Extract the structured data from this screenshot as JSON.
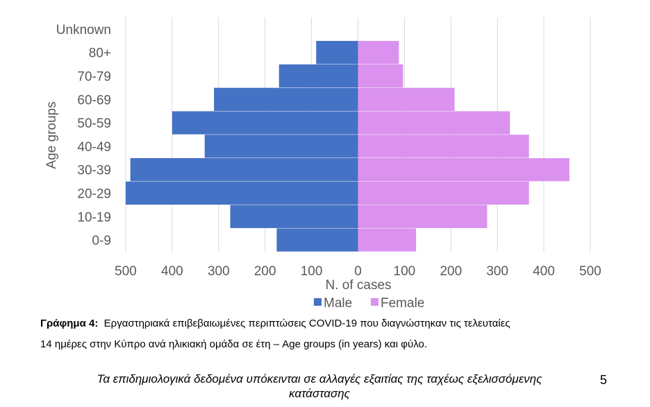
{
  "chart_data": {
    "type": "bar",
    "orientation": "horizontal",
    "subtype": "population-pyramid",
    "categories": [
      "0-9",
      "10-19",
      "20-29",
      "30-39",
      "40-49",
      "50-59",
      "60-69",
      "70-79",
      "80+",
      "Unknown"
    ],
    "series": [
      {
        "name": "Male",
        "color": "#4472C4",
        "values": [
          175,
          275,
          500,
          490,
          330,
          400,
          310,
          170,
          90,
          0
        ]
      },
      {
        "name": "Female",
        "color": "#DA92EE",
        "values": [
          125,
          278,
          368,
          455,
          368,
          327,
          208,
          97,
          88,
          0
        ]
      }
    ],
    "xlabel": "N. of cases",
    "ylabel": "Age groups",
    "xlim": [
      -500,
      500
    ],
    "xticks": [
      "500",
      "400",
      "300",
      "200",
      "100",
      "0",
      "100",
      "200",
      "300",
      "400",
      "500"
    ],
    "grid": "vertical",
    "legend_position": "bottom"
  },
  "caption": {
    "label": "Γράφημα 4:",
    "line1": "Εργαστηριακά επιβεβαιωμένες περιπτώσεις COVID-19 που διαγνώστηκαν τις τελευταίες",
    "line2": "14 ημέρες στην Κύπρο ανά ηλικιακή ομάδα σε έτη – Age groups (in years) και φύλο."
  },
  "footer": {
    "line1": "Τα επιδημιολογικά δεδομένα υπόκεινται σε αλλαγές εξαιτίας της ταχέως εξελισσόμενης",
    "line2": "κατάστασης"
  },
  "page_number": "5"
}
